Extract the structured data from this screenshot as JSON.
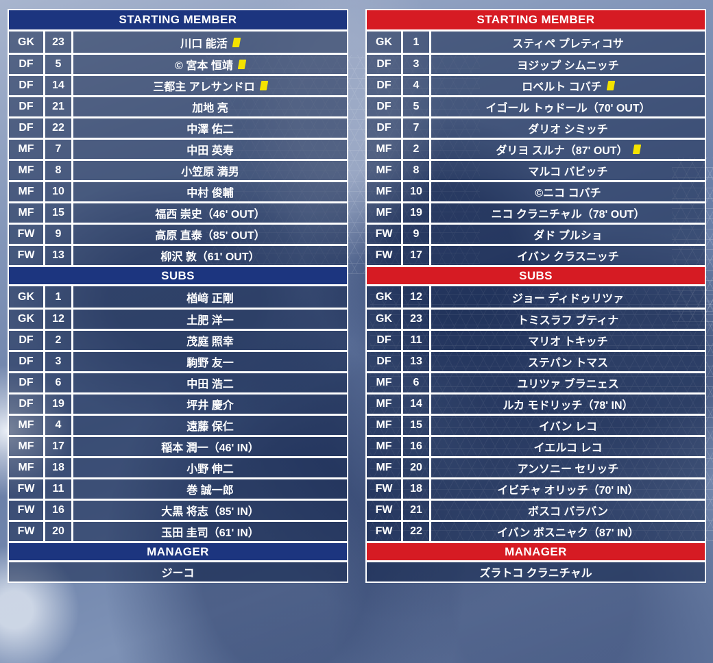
{
  "colors": {
    "header_navy": "#1c357f",
    "header_red": "#d61b23",
    "card_yellow": "#f4e300"
  },
  "left": {
    "accent_color": "#1c357f",
    "starting_title": "STARTING MEMBER",
    "subs_title": "SUBS",
    "manager_title": "MANAGER",
    "manager_name": "ジーコ",
    "starting": [
      {
        "pos": "GK",
        "num": "23",
        "name": "川口 能活",
        "yellow_card": true
      },
      {
        "pos": "DF",
        "num": "5",
        "name": "© 宮本 恒靖",
        "yellow_card": true
      },
      {
        "pos": "DF",
        "num": "14",
        "name": "三都主 アレサンドロ",
        "yellow_card": true
      },
      {
        "pos": "DF",
        "num": "21",
        "name": "加地 亮",
        "yellow_card": false
      },
      {
        "pos": "DF",
        "num": "22",
        "name": "中澤 佑二",
        "yellow_card": false
      },
      {
        "pos": "MF",
        "num": "7",
        "name": "中田 英寿",
        "yellow_card": false
      },
      {
        "pos": "MF",
        "num": "8",
        "name": "小笠原 満男",
        "yellow_card": false
      },
      {
        "pos": "MF",
        "num": "10",
        "name": "中村 俊輔",
        "yellow_card": false
      },
      {
        "pos": "MF",
        "num": "15",
        "name": "福西 崇史（46' OUT）",
        "yellow_card": false
      },
      {
        "pos": "FW",
        "num": "9",
        "name": "高原 直泰（85' OUT）",
        "yellow_card": false
      },
      {
        "pos": "FW",
        "num": "13",
        "name": "柳沢 敦（61' OUT）",
        "yellow_card": false
      }
    ],
    "subs": [
      {
        "pos": "GK",
        "num": "1",
        "name": "楢﨑 正剛",
        "yellow_card": false
      },
      {
        "pos": "GK",
        "num": "12",
        "name": "土肥 洋一",
        "yellow_card": false
      },
      {
        "pos": "DF",
        "num": "2",
        "name": "茂庭 照幸",
        "yellow_card": false
      },
      {
        "pos": "DF",
        "num": "3",
        "name": "駒野 友一",
        "yellow_card": false
      },
      {
        "pos": "DF",
        "num": "6",
        "name": "中田 浩二",
        "yellow_card": false
      },
      {
        "pos": "DF",
        "num": "19",
        "name": "坪井 慶介",
        "yellow_card": false
      },
      {
        "pos": "MF",
        "num": "4",
        "name": "遠藤 保仁",
        "yellow_card": false
      },
      {
        "pos": "MF",
        "num": "17",
        "name": "稲本 潤一（46' IN）",
        "yellow_card": false
      },
      {
        "pos": "MF",
        "num": "18",
        "name": "小野 伸二",
        "yellow_card": false
      },
      {
        "pos": "FW",
        "num": "11",
        "name": "巻 誠一郎",
        "yellow_card": false
      },
      {
        "pos": "FW",
        "num": "16",
        "name": "大黒 将志（85' IN）",
        "yellow_card": false
      },
      {
        "pos": "FW",
        "num": "20",
        "name": "玉田 圭司（61' IN）",
        "yellow_card": false
      }
    ]
  },
  "right": {
    "accent_color": "#d61b23",
    "starting_title": "STARTING MEMBER",
    "subs_title": "SUBS",
    "manager_title": "MANAGER",
    "manager_name": "ズラトコ クラニチャル",
    "starting": [
      {
        "pos": "GK",
        "num": "1",
        "name": "スティペ プレティコサ",
        "yellow_card": false
      },
      {
        "pos": "DF",
        "num": "3",
        "name": "ヨジップ シムニッチ",
        "yellow_card": false
      },
      {
        "pos": "DF",
        "num": "4",
        "name": "ロベルト コバチ",
        "yellow_card": true
      },
      {
        "pos": "DF",
        "num": "5",
        "name": "イゴール トゥドール（70' OUT）",
        "yellow_card": false
      },
      {
        "pos": "DF",
        "num": "7",
        "name": "ダリオ シミッチ",
        "yellow_card": false
      },
      {
        "pos": "MF",
        "num": "2",
        "name": "ダリヨ スルナ（87' OUT）",
        "yellow_card": true
      },
      {
        "pos": "MF",
        "num": "8",
        "name": "マルコ バビッチ",
        "yellow_card": false
      },
      {
        "pos": "MF",
        "num": "10",
        "name": "©ニコ コバチ",
        "yellow_card": false
      },
      {
        "pos": "MF",
        "num": "19",
        "name": "ニコ クラニチャル（78' OUT）",
        "yellow_card": false
      },
      {
        "pos": "FW",
        "num": "9",
        "name": "ダド プルショ",
        "yellow_card": false
      },
      {
        "pos": "FW",
        "num": "17",
        "name": "イバン クラスニッチ",
        "yellow_card": false
      }
    ],
    "subs": [
      {
        "pos": "GK",
        "num": "12",
        "name": "ジョー ディドゥリツァ",
        "yellow_card": false
      },
      {
        "pos": "GK",
        "num": "23",
        "name": "トミスラフ ブティナ",
        "yellow_card": false
      },
      {
        "pos": "DF",
        "num": "11",
        "name": "マリオ トキッチ",
        "yellow_card": false
      },
      {
        "pos": "DF",
        "num": "13",
        "name": "ステパン トマス",
        "yellow_card": false
      },
      {
        "pos": "MF",
        "num": "6",
        "name": "ユリツァ ブラニェス",
        "yellow_card": false
      },
      {
        "pos": "MF",
        "num": "14",
        "name": "ルカ モドリッチ（78' IN）",
        "yellow_card": false
      },
      {
        "pos": "MF",
        "num": "15",
        "name": "イバン レコ",
        "yellow_card": false
      },
      {
        "pos": "MF",
        "num": "16",
        "name": "イエルコ レコ",
        "yellow_card": false
      },
      {
        "pos": "MF",
        "num": "20",
        "name": "アンソニー セリッチ",
        "yellow_card": false
      },
      {
        "pos": "FW",
        "num": "18",
        "name": "イビチャ オリッチ（70' IN）",
        "yellow_card": false
      },
      {
        "pos": "FW",
        "num": "21",
        "name": "ボスコ バラバン",
        "yellow_card": false
      },
      {
        "pos": "FW",
        "num": "22",
        "name": "イバン ボスニャク（87' IN）",
        "yellow_card": false
      }
    ]
  }
}
